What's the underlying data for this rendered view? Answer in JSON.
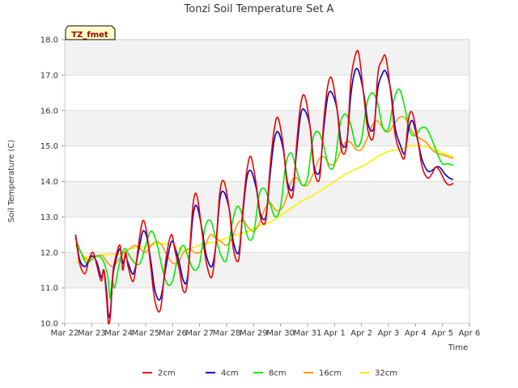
{
  "chart_data": {
    "type": "line",
    "title": "Tonzi Soil Temperature Set A",
    "xlabel": "Time",
    "ylabel": "Soil Temperature (C)",
    "tag": "TZ_fmet",
    "xlim": [
      0,
      15
    ],
    "ylim": [
      10.0,
      18.0
    ],
    "x_ticks": [
      {
        "x": 0,
        "label": "Mar 22"
      },
      {
        "x": 1,
        "label": "Mar 23"
      },
      {
        "x": 2,
        "label": "Mar 24"
      },
      {
        "x": 3,
        "label": "Mar 25"
      },
      {
        "x": 4,
        "label": "Mar 26"
      },
      {
        "x": 5,
        "label": "Mar 27"
      },
      {
        "x": 6,
        "label": "Mar 28"
      },
      {
        "x": 7,
        "label": "Mar 29"
      },
      {
        "x": 8,
        "label": "Mar 30"
      },
      {
        "x": 9,
        "label": "Mar 31"
      },
      {
        "x": 10,
        "label": "Apr 1"
      },
      {
        "x": 11,
        "label": "Apr 2"
      },
      {
        "x": 12,
        "label": "Apr 3"
      },
      {
        "x": 13,
        "label": "Apr 4"
      },
      {
        "x": 14,
        "label": "Apr 5"
      },
      {
        "x": 15,
        "label": "Apr 6"
      }
    ],
    "y_ticks": [
      {
        "y": 10.0,
        "label": "10.0"
      },
      {
        "y": 11.0,
        "label": "11.0"
      },
      {
        "y": 12.0,
        "label": "12.0"
      },
      {
        "y": 13.0,
        "label": "13.0"
      },
      {
        "y": 14.0,
        "label": "14.0"
      },
      {
        "y": 15.0,
        "label": "15.0"
      },
      {
        "y": 16.0,
        "label": "16.0"
      },
      {
        "y": 17.0,
        "label": "17.0"
      },
      {
        "y": 18.0,
        "label": "18.0"
      }
    ],
    "series": [
      {
        "name": "2cm",
        "color": "#ee0000",
        "x": [
          0.4,
          0.55,
          0.75,
          0.9,
          1.05,
          1.2,
          1.35,
          1.45,
          1.55,
          1.62,
          1.7,
          1.78,
          1.9,
          2.05,
          2.15,
          2.25,
          2.35,
          2.55,
          2.75,
          2.9,
          3.05,
          3.2,
          3.35,
          3.55,
          3.75,
          3.95,
          4.1,
          4.25,
          4.4,
          4.55,
          4.75,
          4.9,
          5.1,
          5.25,
          5.45,
          5.6,
          5.75,
          5.9,
          6.1,
          6.25,
          6.45,
          6.6,
          6.75,
          6.9,
          7.1,
          7.25,
          7.45,
          7.6,
          7.75,
          7.9,
          8.1,
          8.25,
          8.45,
          8.6,
          8.75,
          8.9,
          9.1,
          9.25,
          9.45,
          9.6,
          9.75,
          9.9,
          10.1,
          10.25,
          10.45,
          10.6,
          10.75,
          10.9,
          11.1,
          11.25,
          11.45,
          11.6,
          11.75,
          11.9,
          12.1,
          12.25,
          12.45,
          12.6,
          12.75,
          12.9,
          13.1,
          13.25,
          13.45,
          13.6,
          13.75,
          13.9,
          14.1,
          14.25,
          14.4
        ],
        "values": [
          12.5,
          11.7,
          11.4,
          11.8,
          12.0,
          11.6,
          11.2,
          11.5,
          10.7,
          10.0,
          10.3,
          11.4,
          11.9,
          12.2,
          11.5,
          12.0,
          11.6,
          11.2,
          12.3,
          12.9,
          12.5,
          11.5,
          10.6,
          10.4,
          11.8,
          12.5,
          12.0,
          11.5,
          10.9,
          11.2,
          13.3,
          13.6,
          12.5,
          11.7,
          11.3,
          12.2,
          13.7,
          14.0,
          13.2,
          12.1,
          11.8,
          13.2,
          14.3,
          14.7,
          13.9,
          13.0,
          12.9,
          14.3,
          15.4,
          15.8,
          15.0,
          13.9,
          13.6,
          15.1,
          16.2,
          16.4,
          15.5,
          14.3,
          14.1,
          15.7,
          16.7,
          16.9,
          16.0,
          14.9,
          15.0,
          16.8,
          17.5,
          17.6,
          16.3,
          15.4,
          15.3,
          17.0,
          17.4,
          17.5,
          16.4,
          15.3,
          14.8,
          14.7,
          15.8,
          15.9,
          15.1,
          14.4,
          14.1,
          14.2,
          14.4,
          14.3,
          14.0,
          13.9,
          13.95
        ]
      },
      {
        "name": "4cm",
        "color": "#0000cc",
        "x": [
          0.4,
          0.55,
          0.75,
          0.9,
          1.05,
          1.2,
          1.35,
          1.45,
          1.55,
          1.62,
          1.7,
          1.78,
          1.9,
          2.05,
          2.15,
          2.25,
          2.35,
          2.55,
          2.75,
          2.9,
          3.05,
          3.2,
          3.35,
          3.55,
          3.75,
          3.95,
          4.1,
          4.25,
          4.4,
          4.55,
          4.75,
          4.9,
          5.1,
          5.25,
          5.45,
          5.6,
          5.75,
          5.9,
          6.1,
          6.25,
          6.45,
          6.6,
          6.75,
          6.9,
          7.1,
          7.25,
          7.45,
          7.6,
          7.75,
          7.9,
          8.1,
          8.25,
          8.45,
          8.6,
          8.75,
          8.9,
          9.1,
          9.25,
          9.45,
          9.6,
          9.75,
          9.9,
          10.1,
          10.25,
          10.45,
          10.6,
          10.75,
          10.9,
          11.1,
          11.25,
          11.45,
          11.6,
          11.75,
          11.9,
          12.1,
          12.25,
          12.45,
          12.6,
          12.75,
          12.9,
          13.1,
          13.25,
          13.45,
          13.6,
          13.75,
          13.9,
          14.1,
          14.25,
          14.4
        ],
        "values": [
          12.5,
          11.8,
          11.6,
          11.8,
          11.9,
          11.7,
          11.3,
          11.5,
          10.9,
          10.2,
          10.4,
          11.3,
          11.8,
          12.1,
          11.7,
          11.9,
          11.7,
          11.4,
          12.1,
          12.6,
          12.4,
          11.7,
          10.9,
          10.7,
          11.6,
          12.3,
          12.1,
          11.7,
          11.2,
          11.3,
          13.0,
          13.3,
          12.6,
          11.9,
          11.6,
          12.2,
          13.5,
          13.7,
          13.2,
          12.3,
          12.0,
          13.1,
          14.1,
          14.3,
          13.8,
          13.1,
          13.0,
          14.1,
          15.1,
          15.4,
          14.9,
          14.0,
          13.8,
          14.9,
          15.9,
          16.0,
          15.5,
          14.4,
          14.3,
          15.5,
          16.4,
          16.5,
          16.0,
          15.1,
          15.1,
          16.4,
          17.1,
          17.1,
          16.4,
          15.6,
          15.5,
          16.6,
          17.0,
          17.1,
          16.5,
          15.5,
          15.0,
          14.8,
          15.5,
          15.7,
          15.1,
          14.6,
          14.3,
          14.3,
          14.4,
          14.4,
          14.2,
          14.1,
          14.05
        ]
      },
      {
        "name": "8cm",
        "color": "#00ee00",
        "x": [
          0.4,
          0.6,
          0.8,
          1.0,
          1.2,
          1.4,
          1.5,
          1.6,
          1.68,
          1.76,
          1.85,
          2.0,
          2.2,
          2.4,
          2.6,
          2.8,
          3.0,
          3.2,
          3.4,
          3.6,
          3.8,
          4.0,
          4.2,
          4.4,
          4.6,
          4.8,
          5.0,
          5.2,
          5.4,
          5.6,
          5.8,
          6.0,
          6.2,
          6.4,
          6.6,
          6.8,
          7.0,
          7.2,
          7.4,
          7.6,
          7.8,
          8.0,
          8.2,
          8.4,
          8.6,
          8.8,
          9.0,
          9.2,
          9.4,
          9.6,
          9.8,
          10.0,
          10.2,
          10.4,
          10.6,
          10.8,
          11.0,
          11.2,
          11.4,
          11.6,
          11.8,
          12.0,
          12.2,
          12.4,
          12.6,
          12.8,
          13.0,
          13.2,
          13.4,
          13.6,
          13.8,
          14.0,
          14.2,
          14.4
        ],
        "values": [
          12.4,
          12.0,
          11.7,
          11.8,
          11.9,
          11.8,
          11.6,
          11.3,
          10.7,
          11.2,
          11.0,
          11.6,
          12.1,
          11.9,
          11.7,
          11.7,
          12.2,
          12.6,
          12.3,
          11.6,
          11.1,
          11.2,
          11.9,
          12.2,
          11.8,
          11.5,
          11.7,
          12.7,
          12.9,
          12.4,
          11.9,
          11.8,
          12.8,
          13.3,
          13.0,
          12.4,
          12.5,
          13.6,
          13.8,
          13.4,
          13.0,
          13.3,
          14.5,
          14.8,
          14.3,
          13.9,
          14.1,
          15.2,
          15.4,
          15.0,
          14.4,
          14.5,
          15.6,
          15.9,
          15.6,
          15.0,
          15.2,
          16.2,
          16.5,
          16.2,
          15.5,
          15.5,
          16.3,
          16.6,
          16.1,
          15.4,
          15.3,
          15.5,
          15.5,
          15.2,
          14.8,
          14.5,
          14.5,
          14.45
        ]
      },
      {
        "name": "16cm",
        "color": "#ff9900",
        "x": [
          0.4,
          0.6,
          0.8,
          1.0,
          1.2,
          1.4,
          1.6,
          1.8,
          2.0,
          2.2,
          2.4,
          2.6,
          2.8,
          3.0,
          3.2,
          3.4,
          3.6,
          3.8,
          4.0,
          4.2,
          4.4,
          4.6,
          4.8,
          5.0,
          5.2,
          5.4,
          5.6,
          5.8,
          6.0,
          6.2,
          6.4,
          6.6,
          6.8,
          7.0,
          7.2,
          7.4,
          7.6,
          7.8,
          8.0,
          8.2,
          8.4,
          8.6,
          8.8,
          9.0,
          9.2,
          9.4,
          9.6,
          9.8,
          10.0,
          10.2,
          10.4,
          10.6,
          10.8,
          11.0,
          11.2,
          11.4,
          11.6,
          11.8,
          12.0,
          12.2,
          12.4,
          12.6,
          12.8,
          13.0,
          13.2,
          13.4,
          13.6,
          13.8,
          14.0,
          14.2,
          14.4
        ],
        "values": [
          12.2,
          12.0,
          11.8,
          11.8,
          11.9,
          11.9,
          11.7,
          11.6,
          11.8,
          12.0,
          12.1,
          12.2,
          12.1,
          12.0,
          12.2,
          12.3,
          12.2,
          11.9,
          11.7,
          11.7,
          12.0,
          12.1,
          12.0,
          12.0,
          12.2,
          12.5,
          12.4,
          12.3,
          12.2,
          12.4,
          12.8,
          12.9,
          12.7,
          12.6,
          12.8,
          13.2,
          13.4,
          13.2,
          13.2,
          13.5,
          14.0,
          14.1,
          13.9,
          13.9,
          14.2,
          14.6,
          14.7,
          14.5,
          14.5,
          14.8,
          15.1,
          15.1,
          14.9,
          14.9,
          15.2,
          15.6,
          15.7,
          15.5,
          15.4,
          15.6,
          15.8,
          15.8,
          15.5,
          15.3,
          15.2,
          15.1,
          14.9,
          14.8,
          14.75,
          14.7,
          14.65
        ]
      },
      {
        "name": "32cm",
        "color": "#ffee00",
        "x": [
          0.4,
          0.8,
          1.2,
          1.6,
          2.0,
          2.4,
          2.8,
          3.2,
          3.6,
          4.0,
          4.4,
          4.8,
          5.2,
          5.6,
          6.0,
          6.4,
          6.8,
          7.2,
          7.6,
          8.0,
          8.4,
          8.8,
          9.2,
          9.6,
          10.0,
          10.4,
          10.8,
          11.2,
          11.6,
          12.0,
          12.4,
          12.8,
          13.2,
          13.6,
          14.0,
          14.4
        ],
        "values": [
          11.7,
          11.85,
          11.9,
          11.95,
          11.95,
          12.1,
          12.15,
          12.2,
          12.25,
          12.2,
          12.05,
          12.15,
          12.25,
          12.3,
          12.4,
          12.5,
          12.6,
          12.75,
          12.85,
          13.05,
          13.25,
          13.45,
          13.6,
          13.8,
          14.0,
          14.2,
          14.35,
          14.5,
          14.7,
          14.85,
          14.9,
          15.0,
          15.0,
          14.95,
          14.8,
          14.7
        ]
      }
    ]
  }
}
